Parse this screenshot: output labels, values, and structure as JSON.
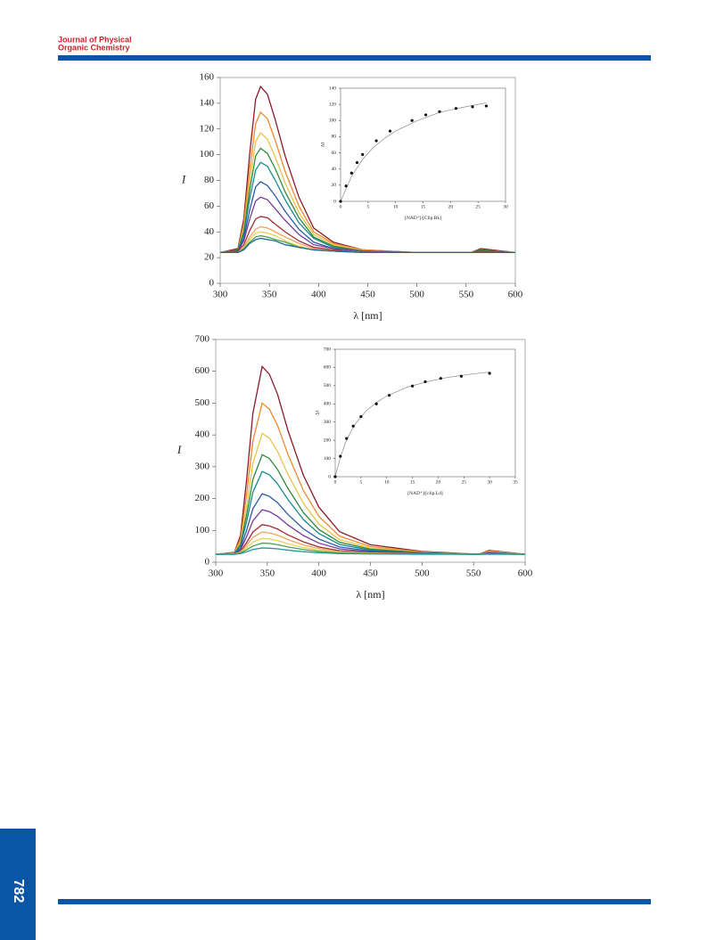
{
  "header": {
    "journal_line1": "Journal of Physical",
    "journal_line2": "Organic Chemistry"
  },
  "page_number": "782",
  "chart_data": [
    {
      "type": "line",
      "xlabel": "λ [nm]",
      "ylabel": "I",
      "xlim": [
        300,
        600
      ],
      "xticks": [
        300,
        350,
        400,
        450,
        500,
        550,
        600
      ],
      "ylim": [
        0,
        160
      ],
      "yticks": [
        0,
        20,
        40,
        60,
        80,
        100,
        120,
        140,
        160
      ],
      "x": [
        300,
        318,
        324,
        330,
        336,
        341,
        348,
        356,
        366,
        380,
        395,
        415,
        445,
        500,
        555,
        565,
        600
      ],
      "series": [
        {
          "color": "#8b1a2a",
          "values": [
            24,
            27,
            50,
            101,
            143,
            153,
            147,
            127,
            99,
            67,
            43,
            32,
            26,
            24,
            24,
            27,
            24
          ]
        },
        {
          "color": "#ee8a2c",
          "values": [
            24,
            26,
            46,
            89,
            124,
            133,
            128,
            111,
            87,
            60,
            40,
            31,
            26,
            24,
            24,
            26,
            24
          ]
        },
        {
          "color": "#e8c448",
          "values": [
            24,
            26,
            43,
            80,
            110,
            117,
            112,
            98,
            78,
            55,
            38,
            30,
            25,
            24,
            24,
            26,
            24
          ]
        },
        {
          "color": "#2f8a3c",
          "values": [
            24,
            26,
            40,
            73,
            99,
            105,
            101,
            89,
            71,
            51,
            36,
            29,
            25,
            24,
            24,
            26,
            24
          ]
        },
        {
          "color": "#1b8a8a",
          "values": [
            24,
            25,
            38,
            66,
            88,
            94,
            91,
            80,
            65,
            47,
            35,
            28,
            25,
            24,
            24,
            25,
            24
          ]
        },
        {
          "color": "#2a5aa6",
          "values": [
            24,
            25,
            35,
            57,
            75,
            79,
            76,
            68,
            56,
            42,
            32,
            27,
            25,
            24,
            24,
            25,
            24
          ]
        },
        {
          "color": "#7a3a9c",
          "values": [
            24,
            25,
            33,
            50,
            64,
            67,
            65,
            58,
            49,
            38,
            30,
            27,
            25,
            24,
            24,
            25,
            24
          ]
        },
        {
          "color": "#a02c34",
          "values": [
            24,
            25,
            30,
            41,
            50,
            52,
            51,
            46,
            40,
            33,
            28,
            26,
            24,
            24,
            24,
            25,
            24
          ]
        },
        {
          "color": "#f2a45a",
          "values": [
            24,
            24,
            28,
            36,
            42,
            44,
            43,
            40,
            36,
            31,
            27,
            25,
            24,
            24,
            24,
            24,
            24
          ]
        },
        {
          "color": "#e6d260",
          "values": [
            24,
            24,
            27,
            34,
            39,
            40,
            39,
            37,
            33,
            29,
            26,
            25,
            24,
            24,
            24,
            24,
            24
          ]
        },
        {
          "color": "#4ea24e",
          "values": [
            24,
            24,
            27,
            32,
            36,
            37,
            36,
            34,
            32,
            28,
            26,
            25,
            24,
            24,
            24,
            24,
            24
          ]
        },
        {
          "color": "#1f6a9a",
          "values": [
            24,
            24,
            26,
            31,
            34,
            35,
            34,
            33,
            30,
            28,
            26,
            25,
            24,
            24,
            24,
            24,
            24
          ]
        }
      ]
    },
    {
      "type": "scatter",
      "xlabel": "[NAD⁺]/[Clip.Bk]",
      "ylabel": "ΔI",
      "xlim": [
        0,
        30
      ],
      "xticks": [
        0,
        5,
        10,
        15,
        20,
        25,
        30
      ],
      "ylim": [
        0,
        140
      ],
      "yticks": [
        0,
        20,
        40,
        60,
        80,
        100,
        120,
        140
      ],
      "x": [
        0,
        1,
        2,
        3,
        4,
        6.5,
        9,
        13,
        15.5,
        18,
        21,
        24,
        26.5
      ],
      "values": [
        0,
        19,
        35,
        48,
        58,
        75,
        87,
        100,
        107,
        111,
        115,
        117,
        118
      ],
      "fit": {
        "x": [
          0,
          2,
          4,
          6,
          8,
          10,
          14,
          18,
          22,
          26.5
        ],
        "values": [
          0,
          31,
          52,
          67,
          78,
          87,
          100,
          110,
          116,
          122
        ]
      }
    },
    {
      "type": "line",
      "xlabel": "λ [nm]",
      "ylabel": "I",
      "xlim": [
        300,
        600
      ],
      "xticks": [
        300,
        350,
        400,
        450,
        500,
        550,
        600
      ],
      "ylim": [
        0,
        700
      ],
      "yticks": [
        0,
        100,
        200,
        300,
        400,
        500,
        600,
        700
      ],
      "x": [
        300,
        318,
        324,
        330,
        336,
        345,
        352,
        360,
        370,
        385,
        400,
        420,
        450,
        500,
        555,
        565,
        600
      ],
      "series": [
        {
          "color": "#8b1a2a",
          "values": [
            25,
            31,
            84,
            261,
            468,
            615,
            591,
            527,
            414,
            273,
            173,
            96,
            55,
            34,
            25,
            37,
            25
          ]
        },
        {
          "color": "#ee8a2c",
          "values": [
            25,
            30,
            73,
            215,
            381,
            500,
            481,
            429,
            339,
            225,
            144,
            82,
            49,
            32,
            25,
            35,
            25
          ]
        },
        {
          "color": "#e8c448",
          "values": [
            25,
            29,
            63,
            177,
            310,
            405,
            390,
            348,
            276,
            185,
            120,
            71,
            44,
            31,
            25,
            33,
            25
          ]
        },
        {
          "color": "#2f8a3c",
          "values": [
            25,
            28,
            56,
            150,
            260,
            338,
            326,
            291,
            232,
            156,
            103,
            63,
            41,
            30,
            25,
            31,
            25
          ]
        },
        {
          "color": "#1b8a8a",
          "values": [
            25,
            28,
            51,
            129,
            220,
            285,
            275,
            246,
            197,
            134,
            90,
            56,
            38,
            29,
            25,
            30,
            25
          ]
        },
        {
          "color": "#2a5aa6",
          "values": [
            25,
            27,
            44,
            101,
            168,
            215,
            207,
            187,
            150,
            105,
            73,
            48,
            35,
            28,
            25,
            29,
            25
          ]
        },
        {
          "color": "#7a3a9c",
          "values": [
            25,
            26,
            39,
            81,
            130,
            165,
            159,
            144,
            117,
            84,
            60,
            42,
            32,
            27,
            25,
            28,
            25
          ]
        },
        {
          "color": "#a02c34",
          "values": [
            25,
            26,
            34,
            62,
            95,
            118,
            114,
            104,
            86,
            64,
            48,
            36,
            30,
            26,
            25,
            27,
            25
          ]
        },
        {
          "color": "#f2a45a",
          "values": [
            25,
            26,
            32,
            53,
            78,
            95,
            92,
            85,
            71,
            54,
            43,
            33,
            29,
            26,
            25,
            26,
            25
          ]
        },
        {
          "color": "#e6d260",
          "values": [
            25,
            26,
            30,
            45,
            63,
            75,
            73,
            68,
            58,
            46,
            38,
            31,
            28,
            26,
            25,
            26,
            25
          ]
        },
        {
          "color": "#4ea24e",
          "values": [
            25,
            25,
            29,
            39,
            51,
            60,
            59,
            55,
            48,
            40,
            34,
            29,
            27,
            26,
            25,
            26,
            25
          ]
        },
        {
          "color": "#1f9a9a",
          "values": [
            25,
            25,
            27,
            33,
            40,
            45,
            44,
            42,
            38,
            33,
            30,
            27,
            26,
            25,
            25,
            25,
            25
          ]
        }
      ]
    },
    {
      "type": "scatter",
      "xlabel": "[NAD⁺]/[clip.Ld]",
      "ylabel": "ΔI",
      "xlim": [
        0,
        35
      ],
      "xticks": [
        0,
        5,
        10,
        15,
        20,
        25,
        30,
        35
      ],
      "ylim": [
        0,
        700
      ],
      "yticks": [
        0,
        100,
        200,
        300,
        400,
        500,
        600,
        700
      ],
      "x": [
        0,
        1,
        2.2,
        3.5,
        5,
        8,
        10.5,
        15,
        17.5,
        20.5,
        24.5,
        30
      ],
      "values": [
        0,
        112,
        210,
        278,
        330,
        400,
        447,
        498,
        522,
        540,
        552,
        568
      ],
      "fit": {
        "x": [
          0,
          1,
          2,
          3,
          4,
          6,
          8,
          10,
          14,
          18,
          22,
          26,
          30
        ],
        "values": [
          0,
          108,
          187,
          246,
          293,
          361,
          408,
          443,
          492,
          523,
          546,
          562,
          575
        ]
      }
    }
  ]
}
